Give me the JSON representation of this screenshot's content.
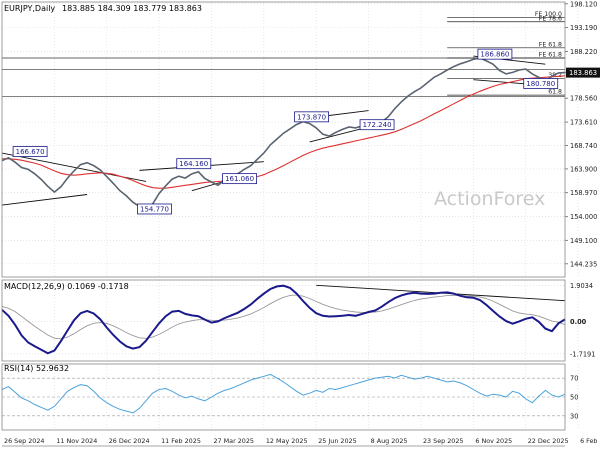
{
  "chart_data": [
    {
      "type": "line",
      "panel": "price",
      "title": "EURJPY,Daily",
      "ohlc_label": "183.885 184.309 183.779 183.863",
      "watermark": "ActionForex",
      "ylim": [
        141.5,
        198.5
      ],
      "y_ticks": [
        144.235,
        149.1,
        154.0,
        158.97,
        163.9,
        168.74,
        173.61,
        178.56,
        183.863,
        188.22,
        193.19,
        198.12
      ],
      "y_tick_labels": [
        "144.235",
        "149.100",
        "154.000",
        "158.970",
        "163.900",
        "168.740",
        "173.610",
        "178.560",
        "183.863",
        "188.220",
        "193.190",
        "198.120"
      ],
      "last_value": 183.863,
      "last_label": "183.863",
      "price_closes": [
        165.6,
        166.2,
        165.3,
        164.2,
        163.8,
        162.9,
        161.7,
        160.3,
        159.1,
        160.2,
        162.0,
        163.5,
        164.8,
        165.2,
        164.6,
        163.7,
        162.3,
        160.9,
        159.4,
        158.3,
        157.0,
        156.1,
        155.4,
        156.6,
        158.8,
        160.4,
        161.8,
        162.4,
        162.0,
        162.9,
        163.3,
        161.9,
        161.2,
        160.5,
        161.6,
        162.3,
        162.9,
        163.8,
        164.6,
        165.9,
        167.2,
        168.9,
        170.1,
        171.3,
        172.2,
        173.1,
        173.7,
        173.3,
        172.4,
        171.1,
        170.7,
        171.5,
        172.1,
        172.6,
        172.4,
        172.8,
        173.3,
        173.1,
        173.6,
        174.7,
        176.4,
        177.8,
        179.0,
        179.9,
        180.7,
        181.8,
        182.9,
        183.6,
        184.4,
        185.1,
        185.7,
        186.1,
        186.6,
        186.9,
        186.3,
        185.6,
        184.3,
        183.6,
        183.9,
        184.4,
        184.6,
        183.6,
        182.9,
        182.1,
        183.1,
        183.8,
        183.863
      ],
      "ema_values": [
        166.0,
        166.0,
        165.9,
        165.7,
        165.4,
        165.1,
        164.7,
        164.1,
        163.5,
        163.0,
        162.7,
        162.6,
        162.7,
        162.9,
        163.0,
        163.1,
        163.0,
        162.8,
        162.4,
        162.0,
        161.5,
        160.9,
        160.4,
        160.0,
        159.9,
        159.9,
        160.1,
        160.3,
        160.5,
        160.7,
        160.9,
        161.1,
        161.2,
        161.3,
        161.4,
        161.5,
        161.6,
        161.8,
        162.0,
        162.3,
        162.7,
        163.3,
        163.9,
        164.6,
        165.3,
        166.0,
        166.7,
        167.3,
        167.8,
        168.2,
        168.5,
        168.8,
        169.1,
        169.4,
        169.7,
        170.0,
        170.3,
        170.6,
        170.9,
        171.2,
        171.6,
        172.1,
        172.7,
        173.3,
        173.9,
        174.6,
        175.3,
        176.0,
        176.7,
        177.4,
        178.1,
        178.8,
        179.4,
        180.0,
        180.5,
        181.0,
        181.4,
        181.7,
        182.0,
        182.3,
        182.6,
        182.7,
        182.8,
        182.9,
        183.0,
        183.1,
        183.2
      ],
      "annotations": [
        {
          "label": "166.670",
          "x": 2,
          "y": 166.67
        },
        {
          "label": "164.160",
          "x": 27,
          "y": 164.16
        },
        {
          "label": "154.770",
          "x": 21,
          "y": 154.77
        },
        {
          "label": "161.060",
          "x": 34,
          "y": 161.06
        },
        {
          "label": "173.870",
          "x": 45,
          "y": 173.87
        },
        {
          "label": "172.240",
          "x": 55,
          "y": 172.24
        },
        {
          "label": "186.860",
          "x": 73,
          "y": 186.86
        },
        {
          "label": "180.780",
          "x": 80,
          "y": 180.78
        }
      ],
      "fib_levels": [
        {
          "label": "FE 100.0",
          "y": 195.3
        },
        {
          "label": "FE 78.6",
          "y": 194.4
        },
        {
          "label": "FE 61.8",
          "y": 189.0
        },
        {
          "label": "FE 61.8",
          "y": 186.9
        },
        {
          "label": "38.2",
          "y": 182.6
        },
        {
          "label": "61.8",
          "y": 179.2
        }
      ],
      "hlines": [
        186.9,
        178.9,
        184.5
      ],
      "trendlines": [
        {
          "x1": 0,
          "y1": 167.2,
          "x2": 22,
          "y2": 161.3
        },
        {
          "x1": 0,
          "y1": 156.4,
          "x2": 13,
          "y2": 158.6
        },
        {
          "x1": 21,
          "y1": 163.6,
          "x2": 40,
          "y2": 165.4
        },
        {
          "x1": 29,
          "y1": 159.4,
          "x2": 38,
          "y2": 162.9
        },
        {
          "x1": 46,
          "y1": 174.3,
          "x2": 56,
          "y2": 176.0
        },
        {
          "x1": 47,
          "y1": 169.5,
          "x2": 56,
          "y2": 172.6
        },
        {
          "x1": 72,
          "y1": 187.3,
          "x2": 83,
          "y2": 185.6
        },
        {
          "x1": 72,
          "y1": 182.4,
          "x2": 83,
          "y2": 181.2
        }
      ]
    },
    {
      "type": "line",
      "panel": "macd",
      "title": "MACD(12,26,9) 0.1069 -0.1718",
      "ylim": [
        -2.1,
        2.2
      ],
      "y_ticks": [
        1.9034,
        0.0,
        -1.7191
      ],
      "y_tick_labels": [
        "1.9034",
        "0.00",
        "-1.7191"
      ],
      "last_label": "0.00",
      "series": [
        {
          "values": [
            0.62,
            0.3,
            -0.18,
            -0.74,
            -1.12,
            -1.32,
            -1.5,
            -1.69,
            -1.55,
            -1.05,
            -0.48,
            0.06,
            0.44,
            0.56,
            0.42,
            0.12,
            -0.32,
            -0.72,
            -1.06,
            -1.32,
            -1.44,
            -1.36,
            -1.02,
            -0.55,
            -0.1,
            0.28,
            0.52,
            0.56,
            0.4,
            0.32,
            0.28,
            0.1,
            -0.06,
            0.0,
            0.18,
            0.32,
            0.46,
            0.66,
            0.9,
            1.2,
            1.48,
            1.72,
            1.86,
            1.9,
            1.78,
            1.48,
            1.08,
            0.72,
            0.44,
            0.3,
            0.26,
            0.28,
            0.3,
            0.34,
            0.3,
            0.4,
            0.5,
            0.58,
            0.78,
            1.02,
            1.24,
            1.38,
            1.48,
            1.52,
            1.48,
            1.46,
            1.48,
            1.52,
            1.54,
            1.48,
            1.36,
            1.28,
            1.26,
            1.14,
            0.88,
            0.56,
            0.26,
            0.02,
            -0.12,
            0.0,
            0.14,
            0.22,
            -0.02,
            -0.38,
            -0.52,
            -0.1,
            0.1069
          ]
        },
        {
          "values": [
            0.8,
            0.7,
            0.52,
            0.27,
            0.0,
            -0.25,
            -0.49,
            -0.72,
            -0.89,
            -0.92,
            -0.83,
            -0.65,
            -0.43,
            -0.23,
            -0.1,
            -0.06,
            -0.11,
            -0.23,
            -0.4,
            -0.59,
            -0.75,
            -0.87,
            -0.9,
            -0.83,
            -0.69,
            -0.5,
            -0.3,
            -0.13,
            -0.03,
            0.04,
            0.09,
            0.09,
            0.06,
            0.05,
            0.07,
            0.12,
            0.19,
            0.28,
            0.4,
            0.56,
            0.74,
            0.94,
            1.13,
            1.28,
            1.38,
            1.4,
            1.34,
            1.22,
            1.06,
            0.91,
            0.78,
            0.68,
            0.6,
            0.55,
            0.5,
            0.48,
            0.48,
            0.5,
            0.56,
            0.65,
            0.77,
            0.89,
            1.01,
            1.11,
            1.19,
            1.24,
            1.29,
            1.33,
            1.37,
            1.39,
            1.38,
            1.36,
            1.34,
            1.3,
            1.22,
            1.08,
            0.91,
            0.73,
            0.56,
            0.45,
            0.39,
            0.36,
            0.28,
            0.15,
            0.02,
            -0.04,
            -0.1718
          ]
        }
      ]
    },
    {
      "type": "line",
      "panel": "rsi",
      "title": "RSI(14) 52.9632",
      "ylim": [
        15,
        85
      ],
      "y_ticks": [
        70,
        50,
        30
      ],
      "y_tick_labels": [
        "70",
        "50",
        "30"
      ],
      "series": [
        {
          "values": [
            58,
            61,
            55,
            49,
            46,
            42,
            39,
            36,
            40,
            48,
            56,
            60,
            63,
            62,
            56,
            49,
            44,
            40,
            37,
            35,
            33,
            38,
            46,
            54,
            58,
            59,
            56,
            52,
            49,
            51,
            48,
            46,
            50,
            54,
            57,
            59,
            62,
            65,
            68,
            70,
            72,
            74,
            70,
            66,
            61,
            56,
            52,
            54,
            57,
            55,
            59,
            58,
            60,
            62,
            64,
            66,
            68,
            70,
            71,
            72,
            70,
            73,
            71,
            69,
            70,
            72,
            70,
            68,
            66,
            67,
            65,
            62,
            58,
            54,
            51,
            53,
            52,
            50,
            56,
            54,
            48,
            44,
            51,
            57,
            52,
            50,
            52.9632
          ]
        }
      ]
    }
  ],
  "x_axis": {
    "labels": [
      "26 Sep 2024",
      "11 Nov 2024",
      "26 Dec 2024",
      "11 Feb 2025",
      "27 Mar 2025",
      "12 May 2025",
      "25 Jun 2025",
      "8 Aug 2025",
      "23 Sep 2025",
      "6 Nov 2025",
      "22 Dec 2025",
      "6 Feb 2026"
    ],
    "positions": [
      0,
      8,
      16,
      24,
      32,
      40,
      48,
      56,
      64,
      72,
      80,
      88
    ],
    "count": 87
  },
  "colors": {
    "price": "#5a6470",
    "ema": "#e03030",
    "macd": "#1a1a8c",
    "signal": "#9a9a9a",
    "rsi": "#4aa3dc",
    "grid": "#d8d8d8",
    "annotation_border": "#1a1a8c",
    "annotation_text": "#1a1a8c",
    "watermark": "#c9c9c9"
  }
}
